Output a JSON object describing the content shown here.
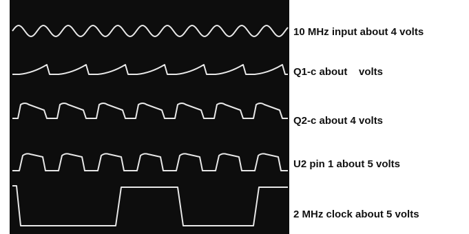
{
  "traces": [
    {
      "label": "10 MHz input about 4 volts"
    },
    {
      "label": "Q1-c about    volts"
    },
    {
      "label": "Q2-c about 4 volts"
    },
    {
      "label": "U2 pin 1 about 5 volts"
    },
    {
      "label": "2 MHz clock about 5 volts"
    }
  ]
}
